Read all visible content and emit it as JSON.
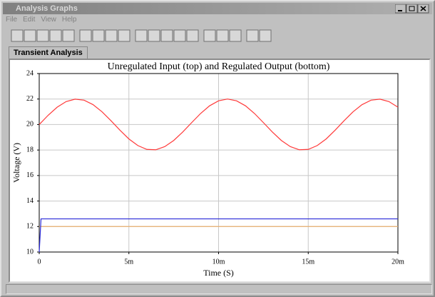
{
  "window": {
    "title": "Analysis Graphs",
    "menu": [
      "File",
      "Edit",
      "View",
      "Help"
    ],
    "tab": "Transient Analysis"
  },
  "chart_data": {
    "type": "line",
    "title": "Unregulated Input (top) and Regulated Output (bottom)",
    "x_label": "Time (S)",
    "y_label": "Voltage (V)",
    "xlim": [
      0,
      0.02
    ],
    "ylim": [
      10,
      24
    ],
    "xticks": [
      0,
      {
        "value": 0.005,
        "label": "5m"
      },
      {
        "value": 0.01,
        "label": "10m"
      },
      {
        "value": 0.015,
        "label": "15m"
      },
      {
        "value": 0.02,
        "label": "20m"
      }
    ],
    "yticks": [
      10,
      12,
      14,
      16,
      18,
      20,
      22,
      24
    ],
    "grid": true,
    "series": [
      {
        "color": "#ff3a3a",
        "x": [
          0,
          0.0005,
          0.001,
          0.0015,
          0.002,
          0.0025,
          0.003,
          0.0035,
          0.004,
          0.0045,
          0.005,
          0.0055,
          0.006,
          0.0065,
          0.007,
          0.0075,
          0.008,
          0.0085,
          0.009,
          0.0095,
          0.01,
          0.0105,
          0.011,
          0.0115,
          0.012,
          0.0125,
          0.013,
          0.0135,
          0.014,
          0.0145,
          0.015,
          0.0155,
          0.016,
          0.0165,
          0.017,
          0.0175,
          0.018,
          0.0185,
          0.019,
          0.0195,
          0.02
        ],
        "values": [
          20,
          20.73,
          21.36,
          21.8,
          21.99,
          21.91,
          21.56,
          21,
          20.3,
          19.56,
          18.87,
          18.35,
          18.05,
          18.02,
          18.27,
          18.75,
          19.41,
          20.15,
          20.87,
          21.47,
          21.86,
          22,
          21.86,
          21.47,
          20.87,
          20.15,
          19.41,
          18.75,
          18.27,
          18.02,
          18.05,
          18.35,
          18.87,
          19.56,
          20.3,
          21,
          21.56,
          21.91,
          21.99,
          21.8,
          21.36
        ]
      },
      {
        "color": "#e8b070",
        "x": [
          0,
          0.02
        ],
        "values": [
          12,
          12
        ]
      },
      {
        "color": "#2a2ad8",
        "x": [
          0,
          0.0001,
          0.02
        ],
        "values": [
          10,
          12.6,
          12.6
        ]
      }
    ]
  }
}
